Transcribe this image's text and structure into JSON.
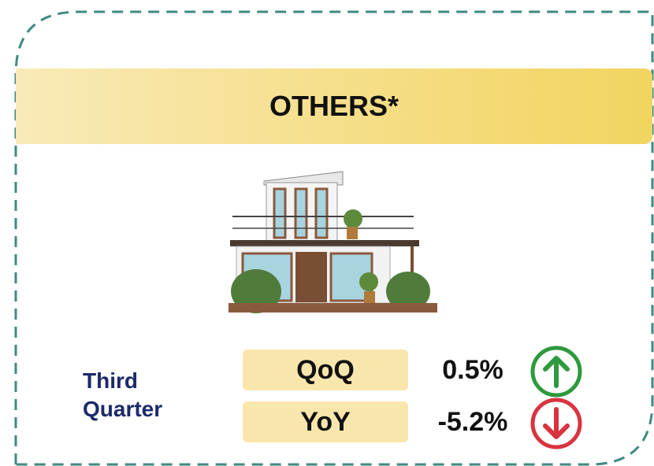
{
  "title": "OTHERS*",
  "period": "Third Quarter",
  "metrics": [
    {
      "label": "QoQ",
      "value": "0.5%"
    },
    {
      "label": "YoY",
      "value": "-5.2%"
    }
  ]
}
